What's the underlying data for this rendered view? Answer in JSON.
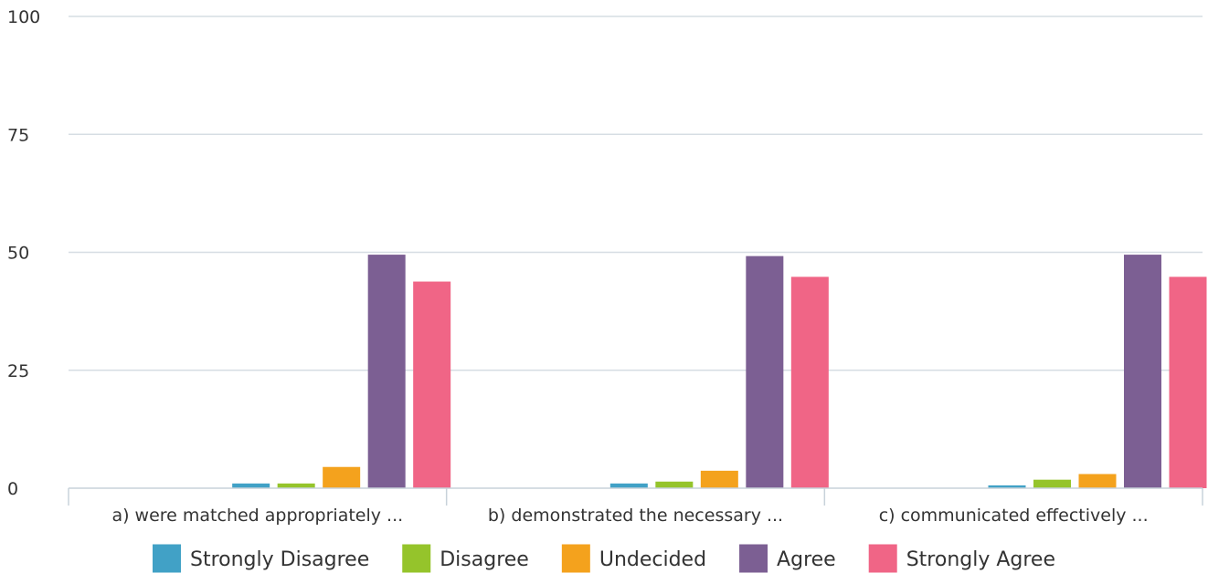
{
  "chart_data": {
    "type": "bar",
    "categories": [
      "a) were matched appropriately ...",
      "b) demonstrated the necessary ...",
      "c) communicated effectively ..."
    ],
    "series": [
      {
        "name": "Strongly Disagree",
        "color": "#41a1c6",
        "values": [
          1.0,
          1.0,
          0.6
        ]
      },
      {
        "name": "Disagree",
        "color": "#95c42b",
        "values": [
          1.0,
          1.4,
          1.8
        ]
      },
      {
        "name": "Undecided",
        "color": "#f4a21d",
        "values": [
          4.5,
          3.7,
          3.0
        ]
      },
      {
        "name": "Agree",
        "color": "#7c5f93",
        "values": [
          49.5,
          49.2,
          49.5
        ]
      },
      {
        "name": "Strongly Agree",
        "color": "#f06586",
        "values": [
          43.8,
          44.8,
          44.8
        ]
      }
    ],
    "yticks": [
      "0",
      "25",
      "50",
      "75",
      "100"
    ],
    "ylim": [
      0,
      100
    ],
    "grid": true,
    "legend_position": "bottom",
    "title": "",
    "xlabel": "",
    "ylabel": ""
  }
}
